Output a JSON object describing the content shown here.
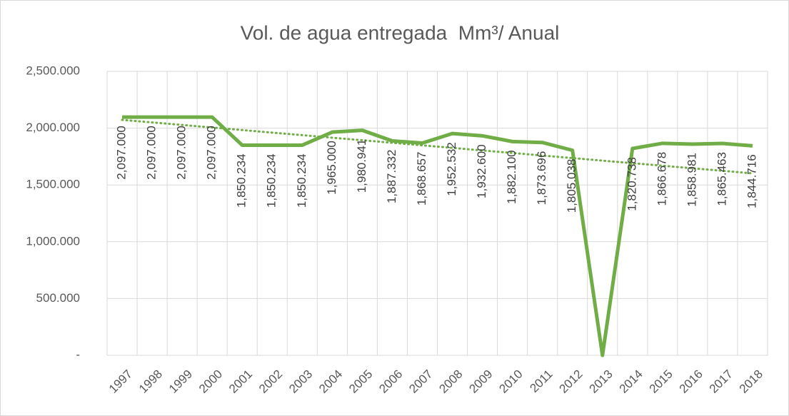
{
  "chart_data": {
    "type": "line",
    "title": "Vol. de agua entregada  Mm³/ Anual",
    "categories": [
      "1997",
      "1998",
      "1999",
      "2000",
      "2001",
      "2002",
      "2003",
      "2004",
      "2005",
      "2006",
      "2007",
      "2008",
      "2009",
      "2010",
      "2011",
      "2012",
      "2013",
      "2014",
      "2015",
      "2016",
      "2017",
      "2018"
    ],
    "values": [
      2097,
      2097,
      2097,
      2097,
      1850.234,
      1850.234,
      1850.234,
      1965,
      1980.941,
      1887.332,
      1868.657,
      1952.532,
      1932.6,
      1882.1,
      1873.696,
      1805.038,
      0,
      1820.738,
      1866.678,
      1858.981,
      1865.463,
      1844.716
    ],
    "value_labels": [
      "2,097.000",
      "2,097.000",
      "2,097.000",
      "2,097.000",
      "1,850.234",
      "1,850.234",
      "1,850.234",
      "1,965.000",
      "1,980.941",
      "1,887.332",
      "1,868.657",
      "1,952.532",
      "1,932.600",
      "1,882.100",
      "1,873.696",
      "1,805.038",
      null,
      "1,820.738",
      "1,866.678",
      "1,858.981",
      "1,865.463",
      "1,844.716"
    ],
    "color": "#70ad47",
    "trendline": {
      "start": 2073,
      "end": 1602,
      "color": "#70ad47"
    },
    "ylim": [
      0,
      2500
    ],
    "yticks": [
      {
        "value": 0,
        "label": "-"
      },
      {
        "value": 500,
        "label": "500.000"
      },
      {
        "value": 1000,
        "label": "1,000.000"
      },
      {
        "value": 1500,
        "label": "1,500.000"
      },
      {
        "value": 2000,
        "label": "2,000.000"
      },
      {
        "value": 2500,
        "label": "2,500.000"
      }
    ],
    "grid": true
  }
}
